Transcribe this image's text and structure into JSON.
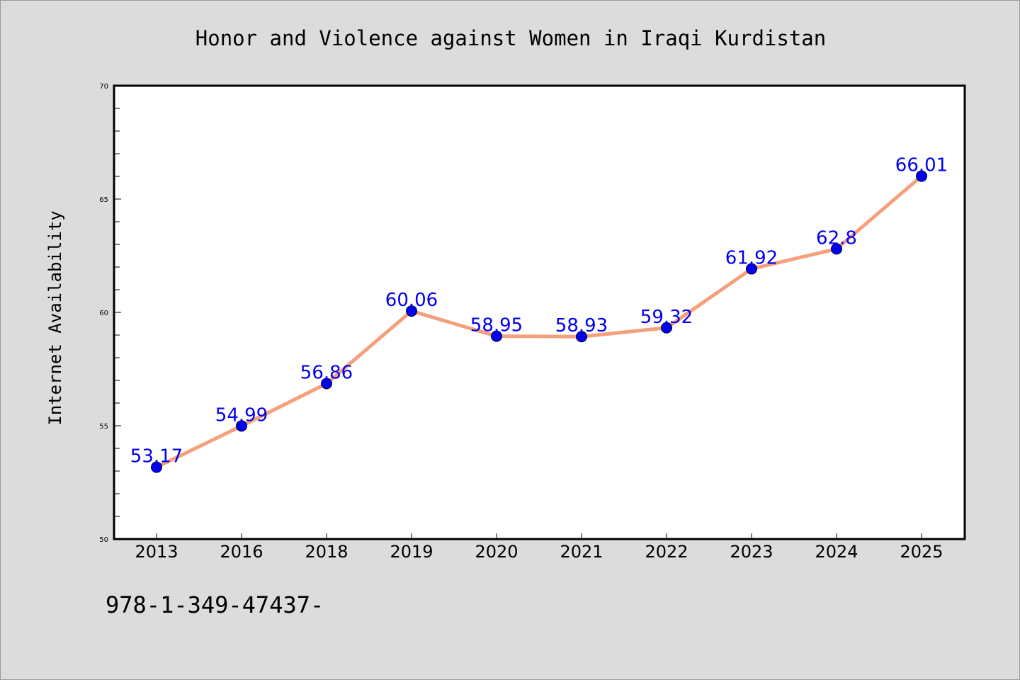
{
  "chart_data": {
    "type": "line",
    "title": "Honor and Violence against Women in Iraqi Kurdistan",
    "xlabel": "",
    "ylabel": "Internet Availability",
    "categories": [
      "2013",
      "2016",
      "2018",
      "2019",
      "2020",
      "2021",
      "2022",
      "2023",
      "2024",
      "2025"
    ],
    "series": [
      {
        "values": [
          53.17,
          54.99,
          56.86,
          60.06,
          58.95,
          58.93,
          59.32,
          61.92,
          62.8,
          66.01
        ],
        "labels": [
          "53.17",
          "54.99",
          "56.86",
          "60.06",
          "58.95",
          "58.93",
          "59.32",
          "61.92",
          "62.8",
          "66.01"
        ]
      }
    ],
    "ylim": [
      50,
      70
    ],
    "yticks": [
      50,
      55,
      60,
      65,
      70
    ],
    "grid": false,
    "legend": "none",
    "line_color": "#f4a07c",
    "marker_color": "#0000ee",
    "label_color": "#0000ee",
    "background_color": "#dcdcdc",
    "plot_background_color": "#ffffff"
  },
  "footnote": "978-1-349-47437-"
}
